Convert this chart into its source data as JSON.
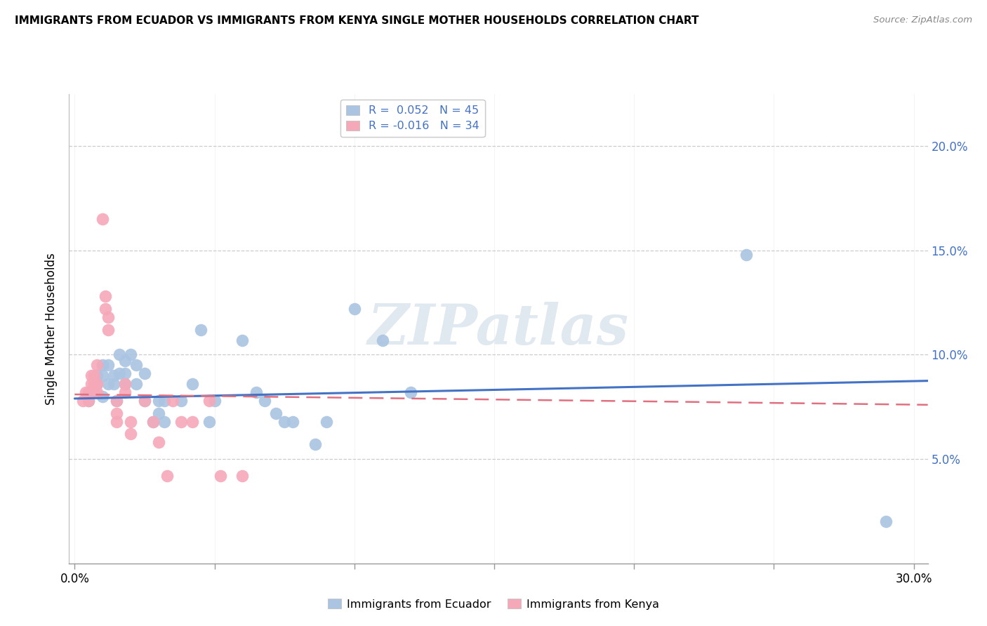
{
  "title": "IMMIGRANTS FROM ECUADOR VS IMMIGRANTS FROM KENYA SINGLE MOTHER HOUSEHOLDS CORRELATION CHART",
  "source": "Source: ZipAtlas.com",
  "ylabel": "Single Mother Households",
  "y_ticks": [
    0.05,
    0.1,
    0.15,
    0.2
  ],
  "y_tick_labels": [
    "5.0%",
    "10.0%",
    "15.0%",
    "20.0%"
  ],
  "x_ticks": [
    0.0,
    0.05,
    0.1,
    0.15,
    0.2,
    0.25,
    0.3
  ],
  "xlim": [
    -0.002,
    0.305
  ],
  "ylim": [
    0.0,
    0.225
  ],
  "legend_label_ecuador": "Immigrants from Ecuador",
  "legend_label_kenya": "Immigrants from Kenya",
  "ecuador_color": "#aac4e2",
  "kenya_color": "#f5a8b8",
  "ecuador_line_color": "#4472c4",
  "kenya_line_color": "#e07080",
  "watermark": "ZIPatlas",
  "ecuador_points": [
    [
      0.005,
      0.078
    ],
    [
      0.007,
      0.083
    ],
    [
      0.008,
      0.09
    ],
    [
      0.008,
      0.086
    ],
    [
      0.01,
      0.095
    ],
    [
      0.01,
      0.09
    ],
    [
      0.01,
      0.08
    ],
    [
      0.012,
      0.095
    ],
    [
      0.012,
      0.086
    ],
    [
      0.014,
      0.09
    ],
    [
      0.014,
      0.086
    ],
    [
      0.015,
      0.078
    ],
    [
      0.016,
      0.1
    ],
    [
      0.016,
      0.091
    ],
    [
      0.018,
      0.097
    ],
    [
      0.018,
      0.091
    ],
    [
      0.018,
      0.086
    ],
    [
      0.02,
      0.1
    ],
    [
      0.022,
      0.095
    ],
    [
      0.022,
      0.086
    ],
    [
      0.025,
      0.091
    ],
    [
      0.025,
      0.078
    ],
    [
      0.028,
      0.068
    ],
    [
      0.03,
      0.072
    ],
    [
      0.03,
      0.078
    ],
    [
      0.032,
      0.068
    ],
    [
      0.032,
      0.078
    ],
    [
      0.038,
      0.078
    ],
    [
      0.042,
      0.086
    ],
    [
      0.045,
      0.112
    ],
    [
      0.048,
      0.068
    ],
    [
      0.05,
      0.078
    ],
    [
      0.06,
      0.107
    ],
    [
      0.065,
      0.082
    ],
    [
      0.068,
      0.078
    ],
    [
      0.072,
      0.072
    ],
    [
      0.075,
      0.068
    ],
    [
      0.078,
      0.068
    ],
    [
      0.086,
      0.057
    ],
    [
      0.09,
      0.068
    ],
    [
      0.1,
      0.122
    ],
    [
      0.11,
      0.107
    ],
    [
      0.12,
      0.082
    ],
    [
      0.24,
      0.148
    ],
    [
      0.29,
      0.02
    ]
  ],
  "kenya_points": [
    [
      0.003,
      0.078
    ],
    [
      0.004,
      0.082
    ],
    [
      0.005,
      0.078
    ],
    [
      0.005,
      0.082
    ],
    [
      0.006,
      0.09
    ],
    [
      0.006,
      0.086
    ],
    [
      0.007,
      0.09
    ],
    [
      0.007,
      0.086
    ],
    [
      0.007,
      0.082
    ],
    [
      0.008,
      0.095
    ],
    [
      0.008,
      0.086
    ],
    [
      0.008,
      0.082
    ],
    [
      0.01,
      0.165
    ],
    [
      0.011,
      0.128
    ],
    [
      0.011,
      0.122
    ],
    [
      0.012,
      0.118
    ],
    [
      0.012,
      0.112
    ],
    [
      0.015,
      0.078
    ],
    [
      0.015,
      0.072
    ],
    [
      0.015,
      0.068
    ],
    [
      0.018,
      0.086
    ],
    [
      0.018,
      0.082
    ],
    [
      0.02,
      0.068
    ],
    [
      0.02,
      0.062
    ],
    [
      0.025,
      0.078
    ],
    [
      0.028,
      0.068
    ],
    [
      0.03,
      0.058
    ],
    [
      0.033,
      0.042
    ],
    [
      0.035,
      0.078
    ],
    [
      0.038,
      0.068
    ],
    [
      0.042,
      0.068
    ],
    [
      0.048,
      0.078
    ],
    [
      0.052,
      0.042
    ],
    [
      0.06,
      0.042
    ]
  ],
  "ecuador_trend": {
    "x_start": 0.0,
    "y_start": 0.079,
    "x_end": 0.305,
    "y_end": 0.0875
  },
  "kenya_trend": {
    "x_start": 0.0,
    "y_start": 0.081,
    "x_end": 0.305,
    "y_end": 0.076
  }
}
